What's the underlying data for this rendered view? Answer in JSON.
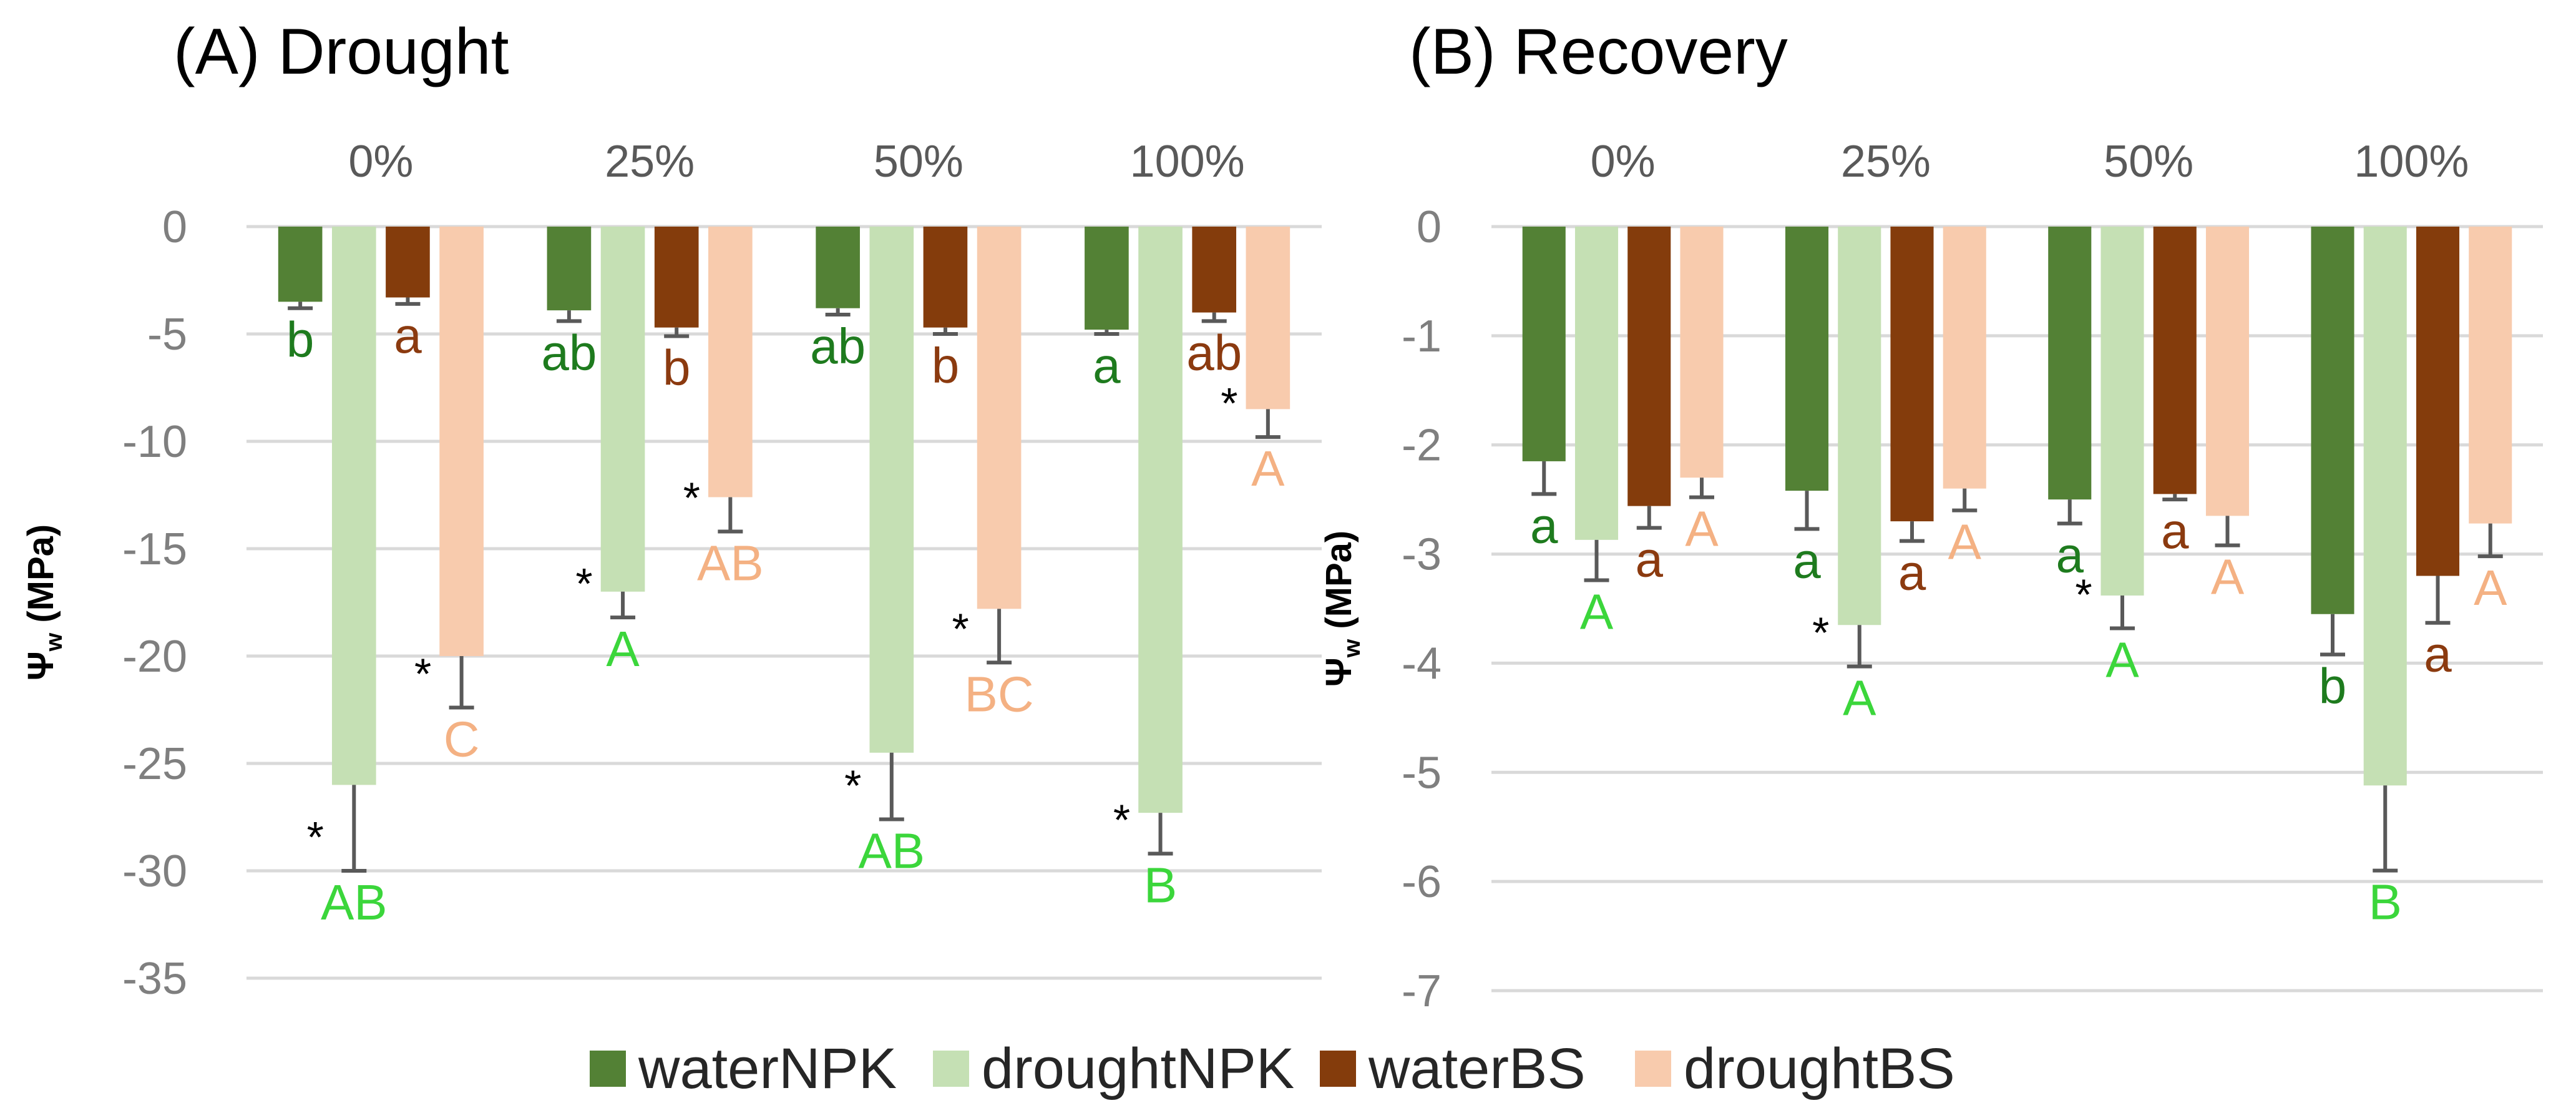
{
  "legend": [
    {
      "name": "waterNPK",
      "color": "#538135"
    },
    {
      "name": "droughtNPK",
      "color": "#c5e0b4"
    },
    {
      "name": "waterBS",
      "color": "#843c0c"
    },
    {
      "name": "droughtBS",
      "color": "#f8cbad"
    }
  ],
  "letter_colors": {
    "waterNPK": "#1e7b1e",
    "droughtNPK": "#3bd63b",
    "waterBS": "#8b3a0f",
    "droughtBS": "#f4b183"
  },
  "axis_colors": {
    "gridline": "#d9d9d9",
    "errorbar": "#595959",
    "tick": "#7f7f7f"
  },
  "chart_data": [
    {
      "type": "bar",
      "title": "(A) Drought",
      "ylabel": "Ψw (MPa)",
      "ylabel_main": "Ψ",
      "ylabel_sub": "w",
      "ylabel_unit": " (MPa)",
      "categories": [
        "0%",
        "25%",
        "50%",
        "100%"
      ],
      "ylim": [
        -35,
        0
      ],
      "yticks": [
        0,
        -5,
        -10,
        -15,
        -20,
        -25,
        -30,
        -35
      ],
      "grid": true,
      "series": [
        {
          "name": "waterNPK",
          "values": [
            -3.5,
            -3.9,
            -3.8,
            -4.8
          ],
          "errors": [
            0.3,
            0.5,
            0.3,
            0.2
          ],
          "letters": [
            "b",
            "ab",
            "ab",
            "a"
          ],
          "stars": [
            false,
            false,
            false,
            false
          ]
        },
        {
          "name": "droughtNPK",
          "values": [
            -26.0,
            -17.0,
            -24.5,
            -27.3
          ],
          "errors": [
            4.0,
            1.2,
            3.1,
            1.9
          ],
          "letters": [
            "AB",
            "A",
            "AB",
            "B"
          ],
          "stars": [
            true,
            true,
            true,
            true
          ]
        },
        {
          "name": "waterBS",
          "values": [
            -3.3,
            -4.7,
            -4.7,
            -4.0
          ],
          "errors": [
            0.3,
            0.4,
            0.3,
            0.4
          ],
          "letters": [
            "a",
            "b",
            "b",
            "ab"
          ],
          "stars": [
            false,
            false,
            false,
            false
          ]
        },
        {
          "name": "droughtBS",
          "values": [
            -20.0,
            -12.6,
            -17.8,
            -8.5
          ],
          "errors": [
            2.4,
            1.6,
            2.5,
            1.3
          ],
          "letters": [
            "C",
            "AB",
            "BC",
            "A"
          ],
          "stars": [
            true,
            true,
            true,
            true
          ]
        }
      ]
    },
    {
      "type": "bar",
      "title": "(B) Recovery",
      "ylabel": "Ψw (MPa)",
      "ylabel_main": "Ψ",
      "ylabel_sub": "w",
      "ylabel_unit": " (MPa)",
      "categories": [
        "0%",
        "25%",
        "50%",
        "100%"
      ],
      "ylim": [
        -7,
        0
      ],
      "yticks": [
        0,
        -1,
        -2,
        -3,
        -4,
        -5,
        -6,
        -7
      ],
      "grid": true,
      "series": [
        {
          "name": "waterNPK",
          "values": [
            -2.15,
            -2.42,
            -2.5,
            -3.55
          ],
          "errors": [
            0.3,
            0.35,
            0.22,
            0.37
          ],
          "letters": [
            "a",
            "a",
            "a",
            "b"
          ],
          "stars": [
            false,
            false,
            false,
            false
          ]
        },
        {
          "name": "droughtNPK",
          "values": [
            -2.87,
            -3.65,
            -3.38,
            -5.12
          ],
          "errors": [
            0.37,
            0.38,
            0.3,
            0.78
          ],
          "letters": [
            "A",
            "A",
            "A",
            "B"
          ],
          "stars": [
            false,
            true,
            true,
            false
          ]
        },
        {
          "name": "waterBS",
          "values": [
            -2.56,
            -2.7,
            -2.45,
            -3.2
          ],
          "errors": [
            0.2,
            0.18,
            0.05,
            0.43
          ],
          "letters": [
            "a",
            "a",
            "a",
            "a"
          ],
          "stars": [
            false,
            false,
            false,
            false
          ]
        },
        {
          "name": "droughtBS",
          "values": [
            -2.3,
            -2.4,
            -2.65,
            -2.72
          ],
          "errors": [
            0.18,
            0.2,
            0.27,
            0.3
          ],
          "letters": [
            "A",
            "A",
            "A",
            "A"
          ],
          "stars": [
            false,
            false,
            false,
            false
          ]
        }
      ]
    }
  ]
}
